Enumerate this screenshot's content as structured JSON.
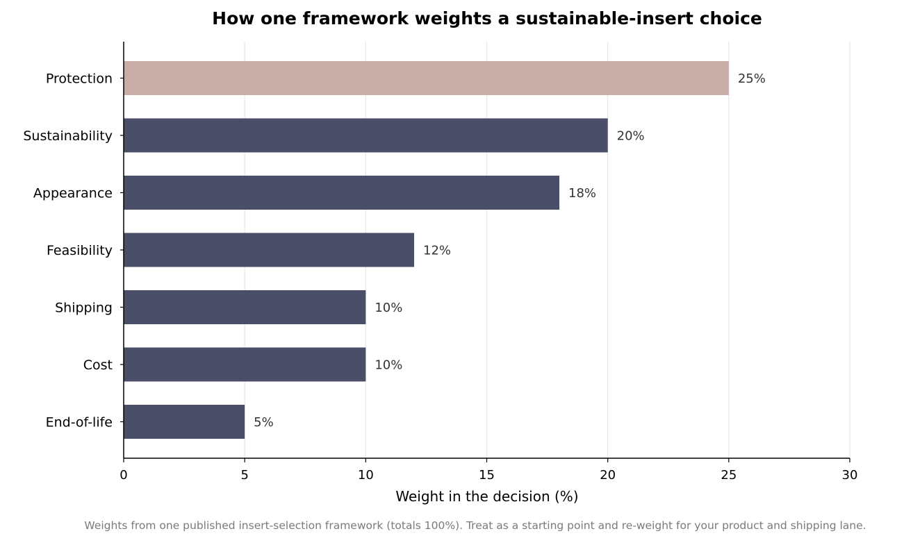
{
  "chart_data": {
    "type": "bar",
    "orientation": "horizontal",
    "title": "How one framework weights a sustainable-insert choice",
    "xlabel": "Weight in the decision (%)",
    "ylabel": "",
    "categories": [
      "Protection",
      "Sustainability",
      "Appearance",
      "Feasibility",
      "Shipping",
      "Cost",
      "End-of-life"
    ],
    "values": [
      25,
      20,
      18,
      12,
      10,
      10,
      5
    ],
    "value_labels": [
      "25%",
      "20%",
      "18%",
      "12%",
      "10%",
      "10%",
      "5%"
    ],
    "xlim": [
      0,
      30
    ],
    "xticks": [
      0,
      5,
      10,
      15,
      20,
      25,
      30
    ],
    "xtick_labels": [
      "0",
      "5",
      "10",
      "15",
      "20",
      "25",
      "30"
    ],
    "grid": "vertical",
    "highlight_category": "Protection",
    "colors": {
      "highlight": "#c8ada7",
      "default": "#4a4e69",
      "grid": "#e6e6e6",
      "axis": "#000000"
    },
    "footnote": "Weights from one published insert-selection framework (totals 100%). Treat as a starting point and re-weight for your product and shipping lane."
  }
}
